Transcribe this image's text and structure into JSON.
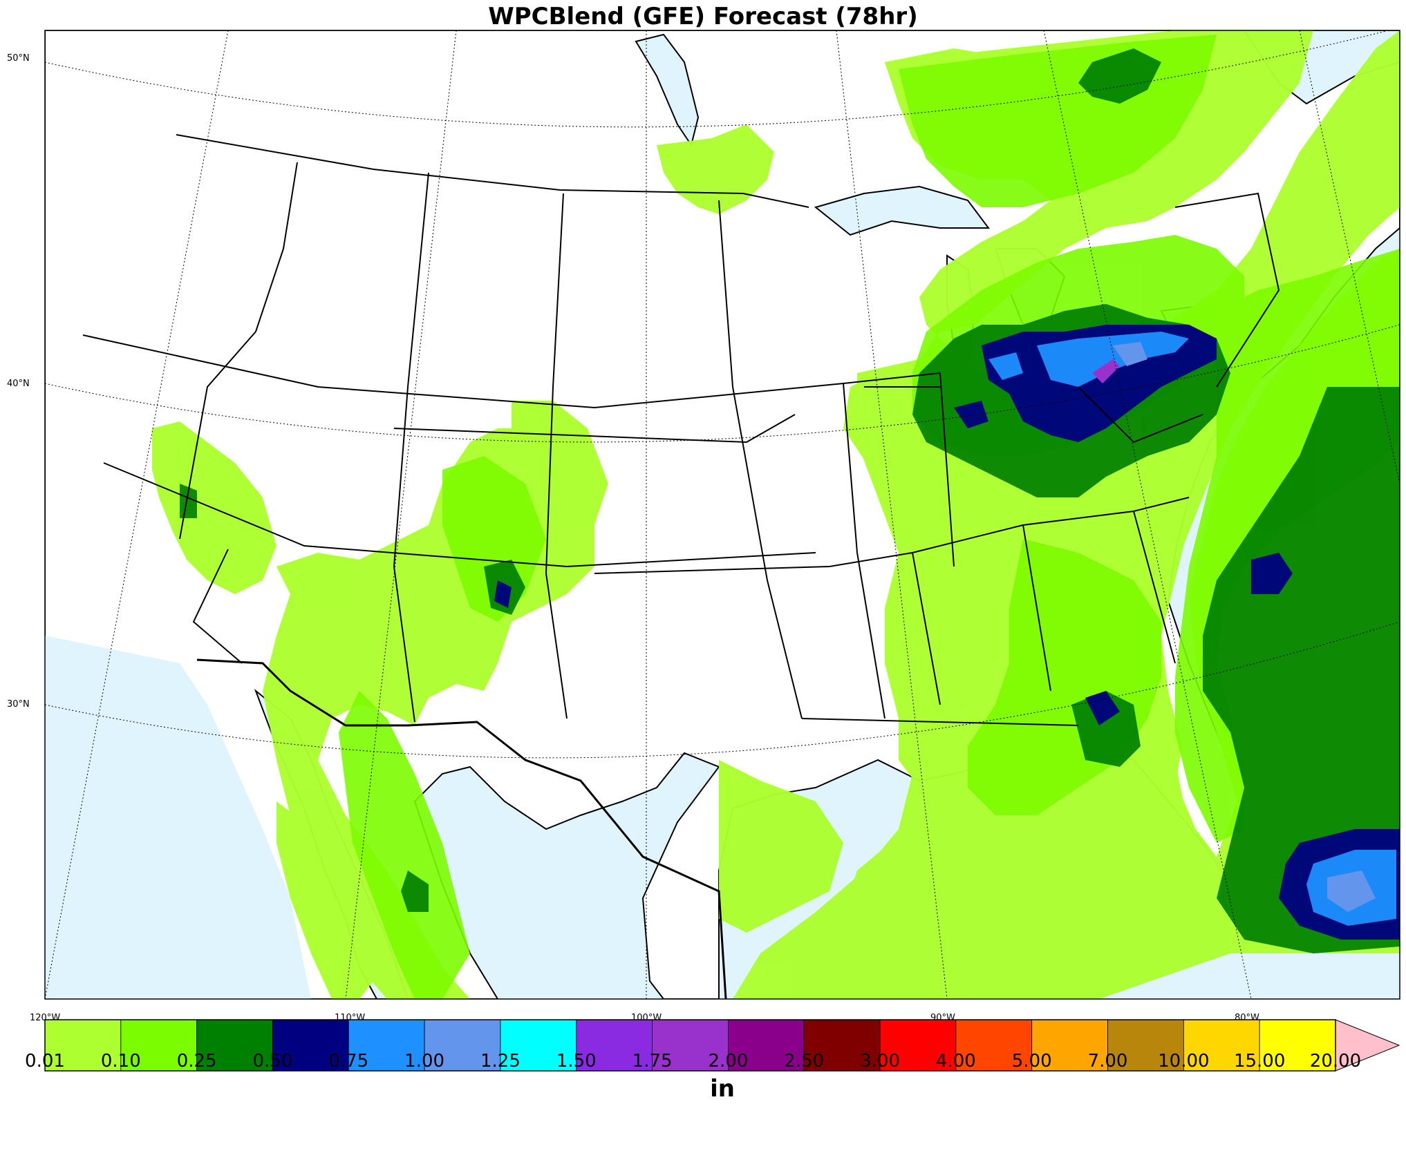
{
  "title": "WPCBlend (GFE) Forecast (78hr)",
  "colors": {
    "ocean": "#dff4fc",
    "land": "#ffffff"
  },
  "lat_labels": [
    "50°N",
    "40°N",
    "30°N"
  ],
  "lon_labels": [
    "120°W",
    "110°W",
    "100°W",
    "90°W",
    "80°W"
  ],
  "colorbar": {
    "unit": "in",
    "ticks": [
      "0.01",
      "0.10",
      "0.25",
      "0.50",
      "0.75",
      "1.00",
      "1.25",
      "1.50",
      "1.75",
      "2.00",
      "2.50",
      "3.00",
      "4.00",
      "5.00",
      "7.00",
      "10.00",
      "15.00",
      "20.00"
    ],
    "colors": [
      "#adff2f",
      "#7cfc00",
      "#008000",
      "#000080",
      "#1e90ff",
      "#6495ed",
      "#00ffff",
      "#8a2be2",
      "#9932cc",
      "#8b008b",
      "#800000",
      "#ff0000",
      "#ff4500",
      "#ffa500",
      "#b8860b",
      "#ffd700",
      "#ffff00"
    ],
    "extend_color": "#ffc0cb"
  }
}
